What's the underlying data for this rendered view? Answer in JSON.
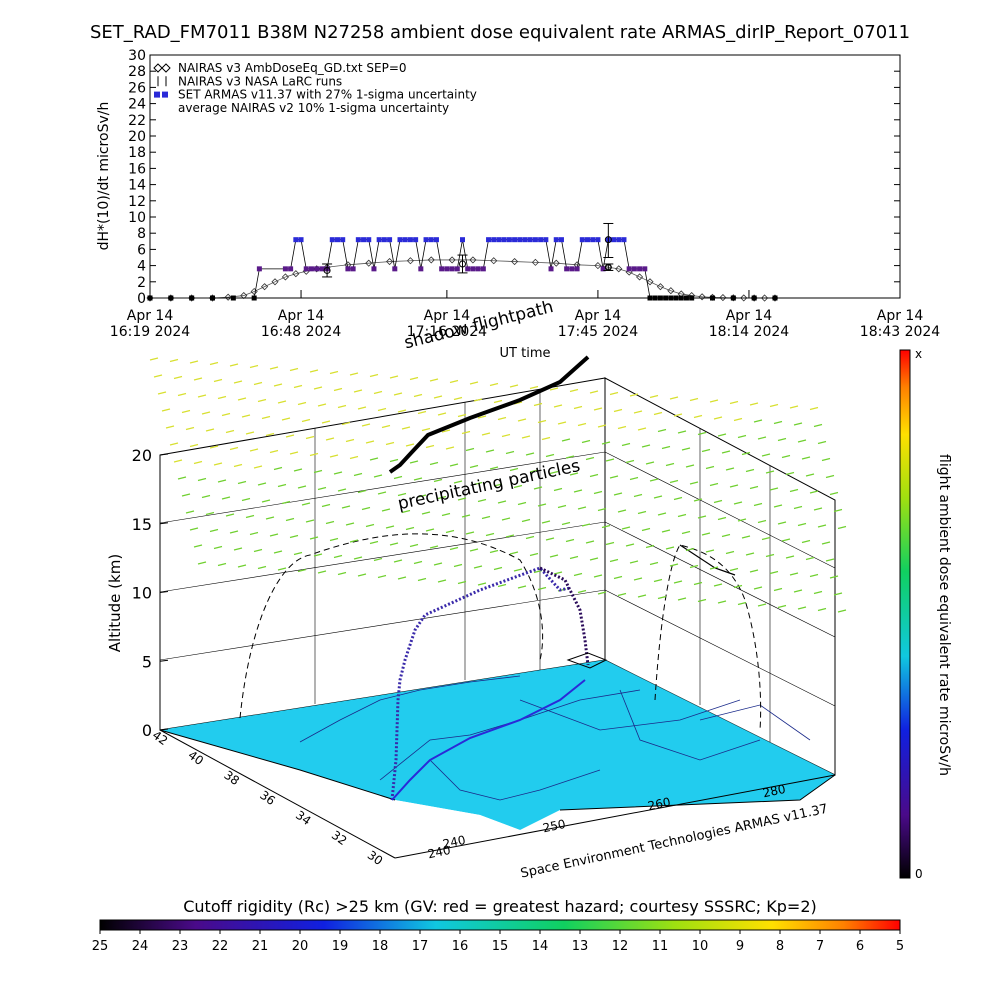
{
  "title": "SET_RAD_FM7011  B38M N27258 ambient dose equivalent rate ARMAS_dirIP_Report_07011",
  "colors": {
    "armas": "#2a2ad8",
    "cutoff_purple": "#5a1a8a",
    "surface": "#22ccee",
    "colorbar_top": "#ff0000"
  },
  "chart_data": [
    {
      "type": "line",
      "ylabel": "dH*(10)/dt microSv/h",
      "xlabel": "UT time",
      "ylim": [
        0,
        30
      ],
      "yticks": [
        0,
        2,
        4,
        6,
        8,
        10,
        12,
        14,
        16,
        18,
        20,
        22,
        24,
        26,
        28,
        30
      ],
      "xlim_minutes": [
        0,
        144
      ],
      "xticks": [
        {
          "minute": 0,
          "line1": "Apr 14",
          "line2": "16:19 2024"
        },
        {
          "minute": 29,
          "line1": "Apr 14",
          "line2": "16:48 2024"
        },
        {
          "minute": 57,
          "line1": "Apr 14",
          "line2": "17:16 2024"
        },
        {
          "minute": 86,
          "line1": "Apr 14",
          "line2": "17:45 2024"
        },
        {
          "minute": 115,
          "line1": "Apr 14",
          "line2": "18:14 2024"
        },
        {
          "minute": 144,
          "line1": "Apr 14",
          "line2": "18:43 2024"
        }
      ],
      "legend": [
        {
          "symbol": "diamond",
          "label": "NAIRAS v3 AmbDoseEq_GD.txt SEP=0"
        },
        {
          "symbol": "errorbar",
          "label": "NAIRAS v3 NASA LaRC runs"
        },
        {
          "symbol": "blue-dot",
          "label": "SET ARMAS v11.37 with 27% 1-sigma uncertainty"
        },
        {
          "symbol": "none",
          "label": "average NAIRAS v2 10% 1-sigma uncertainty"
        }
      ],
      "series": [
        {
          "name": "NAIRAS v3 AmbDoseEq_GD.txt SEP=0",
          "x": [
            0,
            4,
            8,
            12,
            15,
            18,
            20,
            22,
            24,
            26,
            28,
            30,
            32,
            34,
            38,
            42,
            46,
            50,
            54,
            58,
            62,
            66,
            70,
            74,
            78,
            82,
            86,
            88,
            90,
            92,
            94,
            96,
            98,
            100,
            102,
            104,
            106,
            108,
            110,
            112,
            114,
            116,
            118,
            120
          ],
          "values": [
            0,
            0,
            0,
            0,
            0.1,
            0.3,
            0.8,
            1.4,
            2.0,
            2.6,
            3.0,
            3.3,
            3.6,
            3.8,
            4.1,
            4.3,
            4.5,
            4.6,
            4.7,
            4.7,
            4.7,
            4.6,
            4.5,
            4.4,
            4.3,
            4.1,
            4.0,
            3.8,
            3.6,
            3.2,
            2.6,
            2.0,
            1.4,
            0.9,
            0.5,
            0.3,
            0.15,
            0.08,
            0.05,
            0.02,
            0.01,
            0,
            0,
            0
          ]
        },
        {
          "name": "SET ARMAS v11.37 with 27% 1-sigma uncertainty",
          "x": [
            0,
            4,
            8,
            12,
            16,
            20,
            21,
            26,
            27,
            28,
            29,
            30,
            31,
            32,
            33,
            34,
            35,
            36,
            37,
            38,
            39,
            40,
            41,
            42,
            43,
            44,
            45,
            46,
            47,
            48,
            49,
            50,
            51,
            52,
            53,
            54,
            55,
            56,
            57,
            58,
            59,
            60,
            61,
            62,
            63,
            64,
            65,
            66,
            67,
            68,
            69,
            70,
            71,
            72,
            73,
            74,
            75,
            76,
            77,
            78,
            79,
            80,
            81,
            82,
            83,
            84,
            85,
            86,
            87,
            88,
            89,
            90,
            91,
            92,
            93,
            94,
            95,
            96,
            97,
            98,
            99,
            100,
            101,
            102,
            103,
            104,
            108,
            112,
            116,
            120
          ],
          "values": [
            0,
            0,
            0,
            0,
            0,
            0,
            3.6,
            3.6,
            3.6,
            7.2,
            7.2,
            3.6,
            3.6,
            3.6,
            3.6,
            3.6,
            7.2,
            7.2,
            7.2,
            3.6,
            3.6,
            7.2,
            7.2,
            7.2,
            3.6,
            7.2,
            7.2,
            7.2,
            3.6,
            7.2,
            7.2,
            7.2,
            7.2,
            3.6,
            7.2,
            7.2,
            7.2,
            3.6,
            3.6,
            3.6,
            3.6,
            7.2,
            3.6,
            3.6,
            3.6,
            3.6,
            7.2,
            7.2,
            7.2,
            7.2,
            7.2,
            7.2,
            7.2,
            7.2,
            7.2,
            7.2,
            7.2,
            7.2,
            3.6,
            7.2,
            7.2,
            3.6,
            3.6,
            3.6,
            7.2,
            7.2,
            7.2,
            7.2,
            3.6,
            7.2,
            7.2,
            7.2,
            7.2,
            3.6,
            3.6,
            3.6,
            3.6,
            0,
            0,
            0,
            0,
            0,
            0,
            0,
            0,
            0,
            0,
            0,
            0,
            0
          ]
        }
      ],
      "errorbars": [
        {
          "x": 34,
          "y": 3.4,
          "low": 2.6,
          "high": 4.2
        },
        {
          "x": 60,
          "y": 4.2,
          "low": 3.1,
          "high": 5.3
        },
        {
          "x": 88,
          "y": 7.2,
          "low": 5.0,
          "high": 9.2
        },
        {
          "x": 88,
          "y": 3.8,
          "low": 3.4,
          "high": 4.2
        }
      ]
    },
    {
      "type": "scatter",
      "zlabel": "Altitude (km)",
      "zticks": [
        0,
        5,
        10,
        15,
        20
      ],
      "lat_ticks": [
        42,
        40,
        38,
        36,
        34,
        32,
        30
      ],
      "lon_ticks": [
        240,
        240,
        250,
        260,
        280
      ],
      "annotations": [
        "shadow flightpath",
        "precipitating particles"
      ],
      "credit": "Space Environment Technologies ARMAS v11.37"
    },
    {
      "type": "heatmap",
      "colorbar_label": "flight ambient dose equivalent rate microSv/h",
      "colorbar_top_label": "x",
      "colorbar_bottom_label": "0"
    },
    {
      "type": "heatmap",
      "colorbar_label": "Cutoff rigidity (Rc) >25 km (GV: red = greatest hazard; courtesy SSSRC; Kp=2)",
      "ticks": [
        "25",
        "24",
        "23",
        "22",
        "21",
        "20",
        "19",
        "18",
        "17",
        "16",
        "15",
        "14",
        "13",
        "12",
        "11",
        "10",
        "9",
        "8",
        "7",
        "6",
        "5"
      ]
    }
  ]
}
